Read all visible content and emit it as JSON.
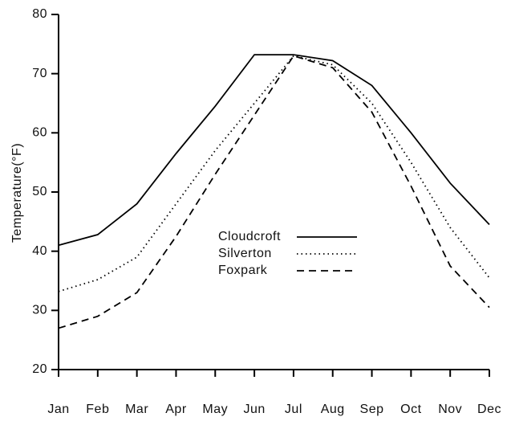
{
  "chart_data": {
    "type": "line",
    "y_label": "Temperature(°F)",
    "categories": [
      "Jan",
      "Feb",
      "Mar",
      "Apr",
      "May",
      "Jun",
      "Jul",
      "Aug",
      "Sep",
      "Oct",
      "Nov",
      "Dec"
    ],
    "series": [
      {
        "name": "Cloudcroft",
        "color": "#000000",
        "dash": "solid",
        "values": [
          41,
          42.8,
          48,
          56.5,
          64.5,
          73.2,
          73.2,
          72.2,
          68,
          60,
          51.5,
          44.5
        ]
      },
      {
        "name": "Silverton",
        "color": "#000000",
        "dash": "dotted",
        "values": [
          33.2,
          35.2,
          39,
          48,
          57,
          65,
          73,
          71.5,
          65,
          55,
          44,
          35.5
        ]
      },
      {
        "name": "Foxpark",
        "color": "#000000",
        "dash": "dashed",
        "values": [
          27,
          29,
          33,
          42.5,
          53,
          63,
          73,
          71,
          63.5,
          51,
          37.5,
          30.5
        ]
      }
    ],
    "ylim": [
      20,
      80
    ],
    "yticks": [
      20,
      30,
      40,
      50,
      60,
      70,
      80
    ],
    "grid": false
  }
}
